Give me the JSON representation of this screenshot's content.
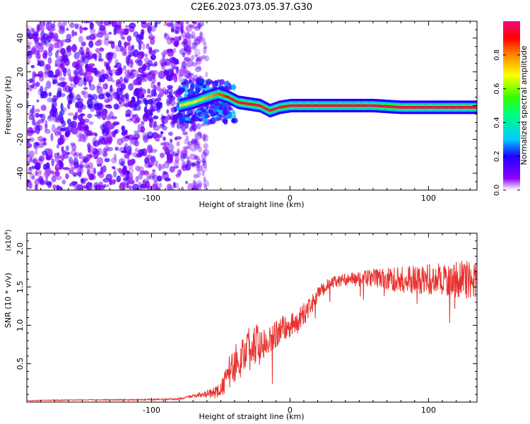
{
  "title": "C2E6.2023.073.05.37.G30",
  "chart_data": [
    {
      "type": "heatmap",
      "xlabel": "Height of straight line (km)",
      "ylabel": "Frequency (Hz)",
      "xlim": [
        -190,
        135
      ],
      "ylim": [
        -50,
        50
      ],
      "x_ticks": [
        "-100",
        "0",
        "100"
      ],
      "x_tick_values": [
        -100,
        0,
        100
      ],
      "y_ticks": [
        "-40",
        "-20",
        "0",
        "20",
        "40"
      ],
      "y_tick_values": [
        -40,
        -20,
        0,
        20,
        40
      ],
      "colorbar": {
        "label": "Normalized spectral amplitude",
        "ticks": [
          "0.0",
          "0.2",
          "0.4",
          "0.6",
          "0.8"
        ],
        "tick_values": [
          0,
          0.2,
          0.4,
          0.6,
          0.8
        ],
        "range": [
          0,
          1
        ]
      },
      "regions": [
        {
          "name": "scatter",
          "x_range": [
            -190,
            -80
          ],
          "frequency_range": [
            -50,
            50
          ],
          "amplitude": 0.15
        },
        {
          "name": "transition",
          "x_range": [
            -80,
            -40
          ],
          "frequency_range": [
            -10,
            15
          ],
          "amplitude": 0.3
        },
        {
          "name": "carrier",
          "x_range": [
            -40,
            135
          ],
          "frequency_center": 0,
          "amplitude": 0.95
        }
      ],
      "carrier_trace": [
        {
          "x": -80,
          "y": 0
        },
        {
          "x": -70,
          "y": 2
        },
        {
          "x": -60,
          "y": 5
        },
        {
          "x": -52,
          "y": 7
        },
        {
          "x": -45,
          "y": 5
        },
        {
          "x": -38,
          "y": 2
        },
        {
          "x": -30,
          "y": 1
        },
        {
          "x": -22,
          "y": 0
        },
        {
          "x": -15,
          "y": -3
        },
        {
          "x": -8,
          "y": -1
        },
        {
          "x": 0,
          "y": 0
        },
        {
          "x": 30,
          "y": 0
        },
        {
          "x": 60,
          "y": 0
        },
        {
          "x": 80,
          "y": -1
        },
        {
          "x": 100,
          "y": -1
        },
        {
          "x": 120,
          "y": -1
        },
        {
          "x": 135,
          "y": -1
        }
      ]
    },
    {
      "type": "line",
      "xlabel": "Height of straight line (km)",
      "ylabel": "SNR (10 * v/v)",
      "y_multiplier": "(x10",
      "y_multiplier_exp": "4",
      "y_multiplier_close": ")",
      "xlim": [
        -190,
        135
      ],
      "ylim": [
        0,
        2.2
      ],
      "x_ticks": [
        "-100",
        "0",
        "100"
      ],
      "x_tick_values": [
        -100,
        0,
        100
      ],
      "y_ticks": [
        "0.5",
        "1.0",
        "1.5",
        "2.0"
      ],
      "y_tick_values": [
        0.5,
        1.0,
        1.5,
        2.0
      ],
      "series": [
        {
          "color": "#e8312e",
          "x": [
            -190,
            -150,
            -110,
            -80,
            -70,
            -60,
            -50,
            -45,
            -40,
            -35,
            -30,
            -25,
            -20,
            -15,
            -10,
            -5,
            0,
            5,
            10,
            15,
            20,
            25,
            30,
            40,
            50,
            60,
            70,
            80,
            90,
            100,
            110,
            120,
            130,
            135
          ],
          "y": [
            0.02,
            0.03,
            0.03,
            0.04,
            0.08,
            0.1,
            0.15,
            0.35,
            0.5,
            0.6,
            0.7,
            0.75,
            0.8,
            0.85,
            0.9,
            0.95,
            1.0,
            1.05,
            1.15,
            1.25,
            1.4,
            1.5,
            1.55,
            1.6,
            1.6,
            1.62,
            1.6,
            1.6,
            1.6,
            1.6,
            1.6,
            1.6,
            1.6,
            1.55
          ],
          "noise": [
            0.005,
            0.005,
            0.008,
            0.01,
            0.02,
            0.05,
            0.1,
            0.2,
            0.25,
            0.28,
            0.3,
            0.28,
            0.25,
            0.22,
            0.2,
            0.18,
            0.16,
            0.15,
            0.14,
            0.12,
            0.1,
            0.09,
            0.08,
            0.08,
            0.1,
            0.12,
            0.15,
            0.18,
            0.2,
            0.2,
            0.22,
            0.24,
            0.26,
            0.26
          ]
        }
      ]
    }
  ]
}
